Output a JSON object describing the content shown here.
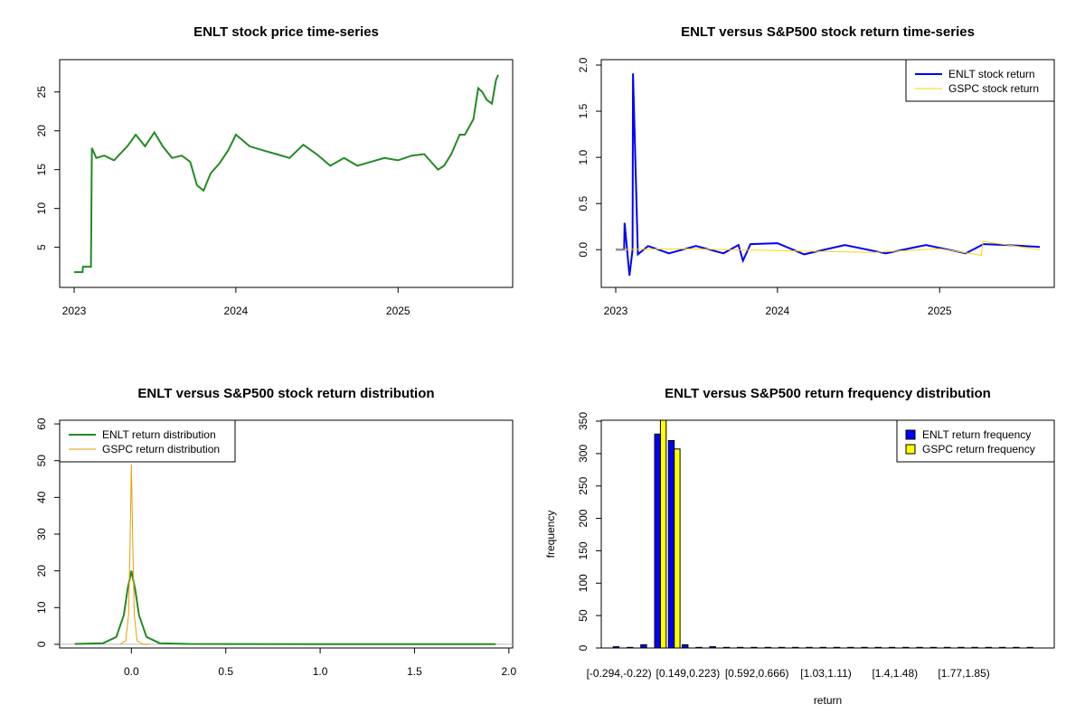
{
  "chart_data": [
    {
      "type": "line",
      "title": "ENLT stock price time-series",
      "xlabel": "",
      "ylabel": "",
      "x_ticks": [
        "2023",
        "2024",
        "2025"
      ],
      "y_ticks": [
        5,
        10,
        15,
        20,
        25
      ],
      "xlim": [
        "2023-01-01",
        "2025-08-15"
      ],
      "ylim": [
        1,
        28
      ],
      "color": "#228B22",
      "series": [
        {
          "x": [
            "2023-01-01",
            "2023-01-20",
            "2023-01-21",
            "2023-02-08",
            "2023-02-10",
            "2023-02-20",
            "2023-03-10",
            "2023-04-01",
            "2023-05-01",
            "2023-05-20",
            "2023-06-10",
            "2023-07-01",
            "2023-07-20",
            "2023-08-10",
            "2023-09-01",
            "2023-09-20",
            "2023-10-05",
            "2023-10-20",
            "2023-11-05",
            "2023-11-25",
            "2023-12-15",
            "2024-01-01",
            "2024-02-01",
            "2024-03-01",
            "2024-04-01",
            "2024-05-01",
            "2024-06-01",
            "2024-07-01",
            "2024-08-01",
            "2024-09-01",
            "2024-10-01",
            "2024-11-01",
            "2024-12-01",
            "2025-01-01",
            "2025-02-01",
            "2025-03-01",
            "2025-04-01",
            "2025-04-15",
            "2025-05-01",
            "2025-05-20",
            "2025-06-01",
            "2025-06-20",
            "2025-07-01",
            "2025-07-10",
            "2025-07-20",
            "2025-08-01",
            "2025-08-10",
            "2025-08-15"
          ],
          "y": [
            1.8,
            1.8,
            2.5,
            2.5,
            17.8,
            16.5,
            16.8,
            16.2,
            18.0,
            19.5,
            18.0,
            19.8,
            18.0,
            16.5,
            16.8,
            16.0,
            13.0,
            12.3,
            14.5,
            15.8,
            17.5,
            19.5,
            18.0,
            17.5,
            17.0,
            16.5,
            18.2,
            17.0,
            15.5,
            16.5,
            15.5,
            16.0,
            16.5,
            16.2,
            16.8,
            17.0,
            15.0,
            15.5,
            17.0,
            19.5,
            19.5,
            21.5,
            25.5,
            25.0,
            24.0,
            23.5,
            26.5,
            27.2
          ]
        }
      ]
    },
    {
      "type": "line",
      "title": "ENLT versus S&P500 stock return time-series",
      "xlabel": "",
      "ylabel": "",
      "x_ticks": [
        "2023",
        "2024",
        "2025"
      ],
      "y_ticks": [
        0.0,
        0.5,
        1.0,
        1.5,
        2.0
      ],
      "xlim": [
        "2023-01-01",
        "2025-08-15"
      ],
      "ylim": [
        -0.35,
        2.0
      ],
      "legend": "top-right",
      "series": [
        {
          "name": "ENLT stock return",
          "color": "#0000FF",
          "x": [
            "2023-01-01",
            "2023-01-20",
            "2023-01-21",
            "2023-02-01",
            "2023-02-08",
            "2023-02-09",
            "2023-02-20",
            "2023-03-15",
            "2023-05-01",
            "2023-07-01",
            "2023-09-01",
            "2023-10-05",
            "2023-10-15",
            "2023-11-01",
            "2024-01-01",
            "2024-03-01",
            "2024-06-01",
            "2024-09-01",
            "2024-12-01",
            "2025-03-01",
            "2025-04-10",
            "2025-06-01",
            "2025-08-15"
          ],
          "y": [
            0.0,
            0.0,
            0.29,
            -0.28,
            0.0,
            1.91,
            -0.05,
            0.04,
            -0.04,
            0.04,
            -0.04,
            0.05,
            -0.12,
            0.06,
            0.07,
            -0.05,
            0.05,
            -0.04,
            0.05,
            -0.04,
            0.06,
            0.05,
            0.03
          ]
        },
        {
          "name": "GSPC stock return",
          "color": "#FFD700",
          "x": [
            "2023-01-01",
            "2023-06-01",
            "2024-01-01",
            "2024-08-05",
            "2025-01-01",
            "2025-04-05",
            "2025-04-09",
            "2025-08-15"
          ],
          "y": [
            0.0,
            0.01,
            -0.01,
            -0.03,
            0.01,
            -0.06,
            0.09,
            0.0
          ]
        }
      ]
    },
    {
      "type": "line",
      "title": "ENLT versus S&P500 stock return distribution",
      "xlabel": "",
      "ylabel": "",
      "x_ticks": [
        0.0,
        0.5,
        1.0,
        1.5,
        2.0
      ],
      "y_ticks": [
        0,
        10,
        20,
        30,
        40,
        50,
        60
      ],
      "xlim": [
        -0.38,
        2.02
      ],
      "ylim": [
        -1,
        61
      ],
      "legend": "top-left",
      "series": [
        {
          "name": "ENLT return distribution",
          "color": "#228B22",
          "x": [
            -0.3,
            -0.15,
            -0.08,
            -0.04,
            -0.02,
            0.0,
            0.02,
            0.04,
            0.08,
            0.15,
            0.3,
            1.0,
            1.93
          ],
          "y": [
            0.1,
            0.3,
            2,
            8,
            15,
            20,
            15,
            8,
            2,
            0.3,
            0.1,
            0.05,
            0.05
          ]
        },
        {
          "name": "GSPC return distribution",
          "color": "#E69F00",
          "x": [
            -0.06,
            -0.03,
            -0.015,
            -0.007,
            0.0,
            0.007,
            0.015,
            0.03,
            0.06,
            0.1
          ],
          "y": [
            0,
            1,
            8,
            28,
            49,
            28,
            8,
            1,
            0,
            0
          ]
        }
      ]
    },
    {
      "type": "bar",
      "title": "ENLT versus S&P500 return frequency distribution",
      "xlabel": "return",
      "ylabel": "frequency",
      "tick_labels": [
        "[-0.294,-0.22)",
        "[0.149,0.223)",
        "[0.592,0.666)",
        "[1.03,1.11)",
        "[1.4,1.48)",
        "[1.77,1.85)"
      ],
      "y_ticks": [
        0,
        50,
        100,
        150,
        200,
        250,
        300,
        350
      ],
      "ylim": [
        0,
        350
      ],
      "legend": "top-right",
      "series": [
        {
          "name": "ENLT return frequency",
          "color": "#0000FF",
          "values": [
            2,
            1,
            5,
            330,
            320,
            5,
            1,
            2,
            1,
            1,
            1,
            1,
            1,
            1,
            1,
            1,
            1,
            1,
            1,
            1,
            1,
            1,
            1,
            1,
            1,
            1,
            1,
            1,
            1,
            1,
            1
          ]
        },
        {
          "name": "GSPC return frequency",
          "color": "#FFFF00",
          "values": [
            0,
            0,
            0,
            352,
            307,
            0,
            0,
            0,
            0,
            0,
            0,
            0,
            0,
            0,
            0,
            0,
            0,
            0,
            0,
            0,
            0,
            0,
            0,
            0,
            0,
            0,
            0,
            0,
            0,
            0,
            0
          ]
        }
      ]
    }
  ]
}
